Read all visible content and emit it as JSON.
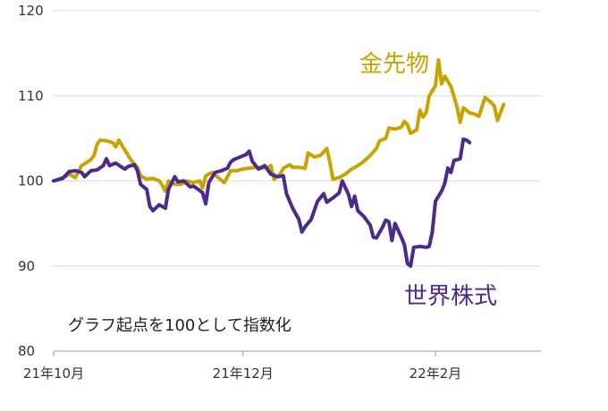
{
  "chart_data": {
    "type": "line",
    "note": "グラフ起点を100として指数化",
    "ylim": [
      80,
      120
    ],
    "y_ticks": [
      120,
      110,
      100,
      90,
      80
    ],
    "x_ticks": [
      {
        "t": 0,
        "label": "21年10月"
      },
      {
        "t": 61,
        "label": "21年12月"
      },
      {
        "t": 123,
        "label": "22年2月"
      }
    ],
    "x_range": [
      0,
      157
    ],
    "grid": "horizontal",
    "series": [
      {
        "name": "金先物",
        "color": "#c9a400",
        "points": [
          [
            0,
            100.0
          ],
          [
            3,
            100.4
          ],
          [
            5,
            100.8
          ],
          [
            7,
            100.4
          ],
          [
            9,
            101.8
          ],
          [
            12,
            102.5
          ],
          [
            13,
            103.0
          ],
          [
            14,
            104.3
          ],
          [
            15,
            104.8
          ],
          [
            17,
            104.7
          ],
          [
            19,
            104.5
          ],
          [
            20,
            104.0
          ],
          [
            21,
            104.8
          ],
          [
            23,
            103.6
          ],
          [
            25,
            102.4
          ],
          [
            27,
            101.6
          ],
          [
            28,
            100.6
          ],
          [
            30,
            100.2
          ],
          [
            32,
            100.3
          ],
          [
            34,
            100.0
          ],
          [
            35,
            99.5
          ],
          [
            36,
            98.8
          ],
          [
            37,
            100.0
          ],
          [
            39,
            99.6
          ],
          [
            41,
            99.6
          ],
          [
            43,
            100.0
          ],
          [
            45,
            99.8
          ],
          [
            47,
            100.0
          ],
          [
            48,
            99.2
          ],
          [
            49,
            100.6
          ],
          [
            51,
            101.0
          ],
          [
            53,
            100.4
          ],
          [
            55,
            99.8
          ],
          [
            57,
            101.2
          ],
          [
            59,
            101.2
          ],
          [
            61,
            101.4
          ],
          [
            63,
            101.5
          ],
          [
            65,
            101.6
          ],
          [
            67,
            101.5
          ],
          [
            69,
            101.6
          ],
          [
            70,
            101.8
          ],
          [
            71,
            100.2
          ],
          [
            73,
            100.8
          ],
          [
            74,
            101.5
          ],
          [
            76,
            101.9
          ],
          [
            77,
            101.6
          ],
          [
            79,
            101.6
          ],
          [
            81,
            101.5
          ],
          [
            82,
            103.3
          ],
          [
            84,
            102.8
          ],
          [
            86,
            103.0
          ],
          [
            88,
            103.8
          ],
          [
            89,
            102.2
          ],
          [
            90,
            100.2
          ],
          [
            92,
            100.4
          ],
          [
            94,
            100.8
          ],
          [
            96,
            101.4
          ],
          [
            98,
            101.8
          ],
          [
            100,
            102.3
          ],
          [
            102,
            103.0
          ],
          [
            104,
            103.8
          ],
          [
            105,
            104.7
          ],
          [
            107,
            105.0
          ],
          [
            108,
            106.2
          ],
          [
            110,
            106.1
          ],
          [
            112,
            106.3
          ],
          [
            113,
            107.0
          ],
          [
            114,
            106.6
          ],
          [
            115,
            105.6
          ],
          [
            117,
            106.0
          ],
          [
            118,
            108.3
          ],
          [
            119,
            107.5
          ],
          [
            120,
            108.0
          ],
          [
            121,
            110.0
          ],
          [
            123,
            111.2
          ],
          [
            124,
            114.2
          ],
          [
            125,
            111.4
          ],
          [
            126,
            112.3
          ],
          [
            128,
            111.1
          ],
          [
            129,
            109.9
          ],
          [
            130,
            108.6
          ],
          [
            131,
            106.9
          ],
          [
            132,
            108.6
          ],
          [
            134,
            108.0
          ],
          [
            136,
            107.8
          ],
          [
            137,
            107.6
          ],
          [
            139,
            109.8
          ],
          [
            141,
            109.2
          ],
          [
            142,
            108.8
          ],
          [
            143,
            107.1
          ],
          [
            145,
            109.0
          ]
        ]
      },
      {
        "name": "世界株式",
        "color": "#4b2a8c",
        "points": [
          [
            0,
            100.0
          ],
          [
            3,
            100.3
          ],
          [
            5,
            101.1
          ],
          [
            7,
            101.2
          ],
          [
            9,
            101.0
          ],
          [
            10,
            100.5
          ],
          [
            12,
            101.2
          ],
          [
            14,
            101.3
          ],
          [
            16,
            101.8
          ],
          [
            17,
            102.6
          ],
          [
            18,
            101.8
          ],
          [
            20,
            102.1
          ],
          [
            22,
            101.6
          ],
          [
            23,
            101.4
          ],
          [
            24,
            101.7
          ],
          [
            26,
            101.9
          ],
          [
            27,
            101.2
          ],
          [
            28,
            99.6
          ],
          [
            30,
            99.0
          ],
          [
            31,
            97.0
          ],
          [
            32,
            96.5
          ],
          [
            34,
            97.2
          ],
          [
            36,
            96.8
          ],
          [
            37,
            99.0
          ],
          [
            39,
            100.5
          ],
          [
            40,
            99.9
          ],
          [
            42,
            100.0
          ],
          [
            44,
            99.3
          ],
          [
            45,
            99.4
          ],
          [
            47,
            98.9
          ],
          [
            48,
            98.6
          ],
          [
            49,
            97.3
          ],
          [
            50,
            99.8
          ],
          [
            52,
            101.0
          ],
          [
            54,
            101.2
          ],
          [
            56,
            101.5
          ],
          [
            57,
            102.2
          ],
          [
            58,
            102.5
          ],
          [
            60,
            102.8
          ],
          [
            62,
            103.1
          ],
          [
            63,
            103.5
          ],
          [
            64,
            102.3
          ],
          [
            66,
            101.4
          ],
          [
            68,
            101.8
          ],
          [
            70,
            100.8
          ],
          [
            72,
            100.5
          ],
          [
            74,
            100.6
          ],
          [
            75,
            98.5
          ],
          [
            77,
            96.8
          ],
          [
            79,
            95.5
          ],
          [
            80,
            94.0
          ],
          [
            81,
            94.6
          ],
          [
            83,
            95.5
          ],
          [
            85,
            97.6
          ],
          [
            87,
            98.5
          ],
          [
            88,
            97.5
          ],
          [
            90,
            98.0
          ],
          [
            92,
            98.6
          ],
          [
            93,
            100.0
          ],
          [
            95,
            98.4
          ],
          [
            96,
            97.0
          ],
          [
            97,
            98.2
          ],
          [
            98,
            96.5
          ],
          [
            100,
            95.8
          ],
          [
            102,
            94.8
          ],
          [
            103,
            93.4
          ],
          [
            104,
            93.3
          ],
          [
            106,
            94.6
          ],
          [
            107,
            95.4
          ],
          [
            108,
            95.2
          ],
          [
            109,
            93.0
          ],
          [
            110,
            95.0
          ],
          [
            112,
            93.4
          ],
          [
            113,
            92.5
          ],
          [
            114,
            90.3
          ],
          [
            115,
            90.0
          ],
          [
            116,
            92.2
          ],
          [
            118,
            92.3
          ],
          [
            120,
            92.2
          ],
          [
            121,
            92.3
          ],
          [
            122,
            94.0
          ],
          [
            123,
            97.6
          ],
          [
            125,
            98.8
          ],
          [
            126,
            99.7
          ],
          [
            127,
            101.5
          ],
          [
            128,
            101.0
          ],
          [
            129,
            102.4
          ],
          [
            131,
            102.6
          ],
          [
            132,
            104.9
          ],
          [
            133,
            104.8
          ],
          [
            134,
            104.5
          ]
        ]
      }
    ],
    "series_label_positions_note": "labels drawn near series in chart"
  }
}
